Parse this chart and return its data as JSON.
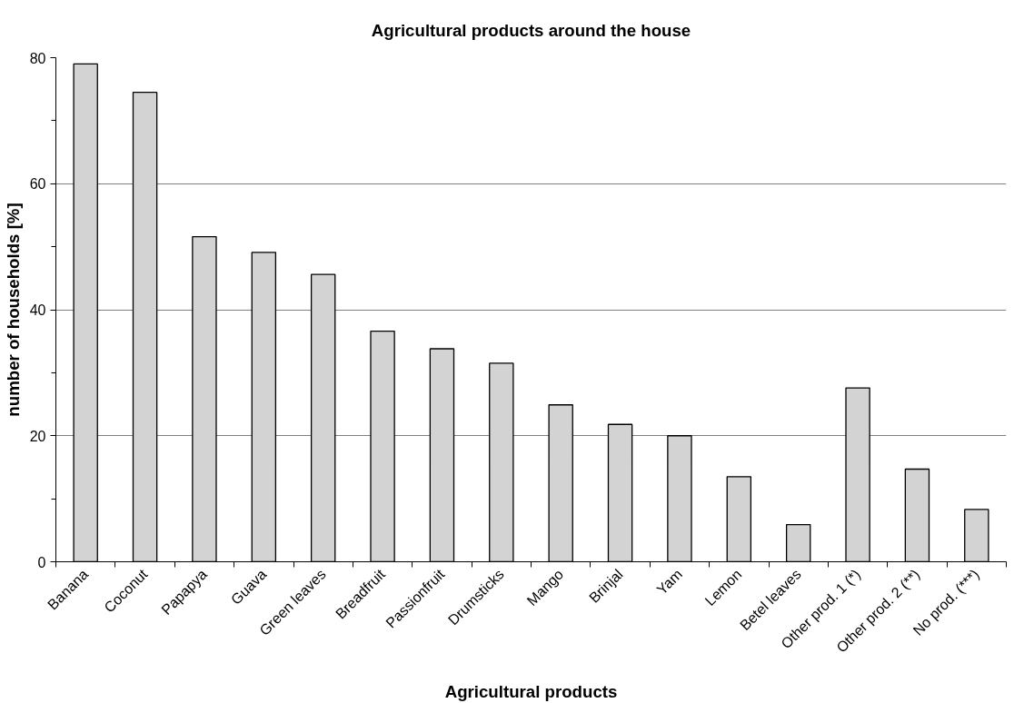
{
  "chart_data": {
    "type": "bar",
    "title": "Agricultural products around the house",
    "xlabel": "Agricultural products",
    "ylabel": "number of households [%]",
    "categories": [
      "Banana",
      "Coconut",
      "Papapya",
      "Guava",
      "Green leaves",
      "Breadfruit",
      "Passionfruit",
      "Drumsticks",
      "Mango",
      "Brinjal",
      "Yam",
      "Lemon",
      "Betel leaves",
      "Other prod. 1 (*)",
      "Other prod. 2 (**)",
      "No prod. (***)"
    ],
    "values": [
      79.0,
      74.5,
      51.6,
      49.1,
      45.6,
      36.6,
      33.8,
      31.5,
      24.9,
      21.8,
      20.0,
      13.5,
      5.9,
      27.6,
      14.7,
      8.3
    ],
    "color": "#d3d3d3",
    "ylim": [
      0,
      80
    ],
    "yticks": [
      0,
      {
        "value": 10,
        "label": null
      },
      20,
      {
        "value": 30,
        "label": null
      },
      40,
      {
        "value": 50,
        "label": null
      },
      60,
      {
        "value": 70,
        "label": null
      },
      80
    ],
    "grid": "y"
  }
}
